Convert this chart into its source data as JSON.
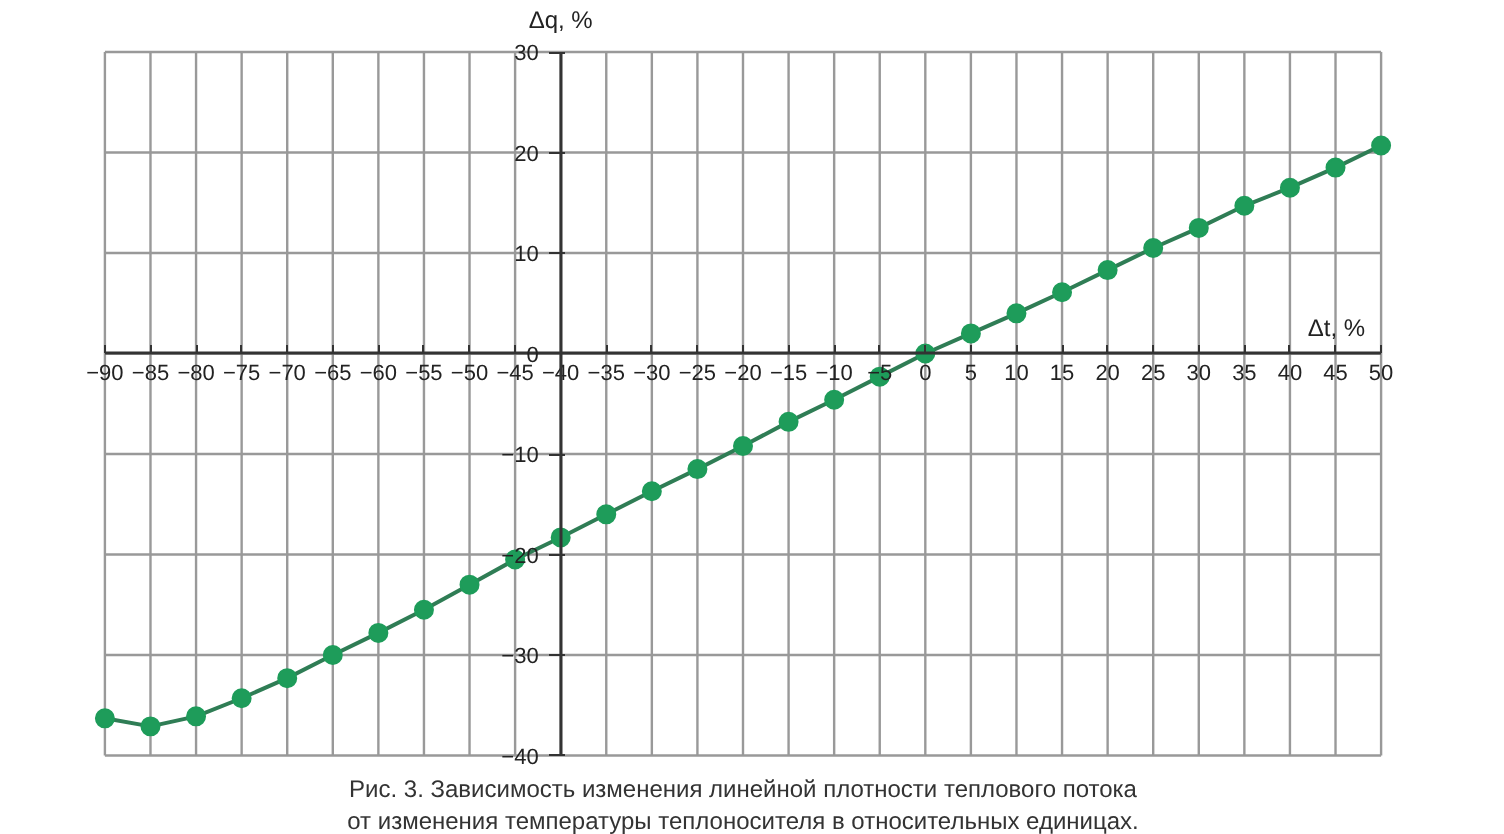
{
  "chart_data": {
    "type": "line",
    "xlabel": "Δt, %",
    "ylabel": "Δq, %",
    "annotations": [
      "Рис. 3. Зависимость изменения линейной плотности теплового потока",
      "от изменения температуры теплоносителя в относительных единицах."
    ],
    "x": [
      -90,
      -85,
      -80,
      -75,
      -70,
      -65,
      -60,
      -55,
      -50,
      -45,
      -40,
      -35,
      -30,
      -25,
      -20,
      -15,
      -10,
      -5,
      0,
      5,
      10,
      15,
      20,
      25,
      30,
      35,
      40,
      45,
      50
    ],
    "series": [
      {
        "color": "#1e9c5a",
        "values": [
          -36.3,
          -37.1,
          -36.1,
          -34.3,
          -32.3,
          -30,
          -27.8,
          -25.5,
          -23,
          -20.5,
          -18.3,
          -16,
          -13.7,
          -11.5,
          -9.2,
          -6.8,
          -4.6,
          -2.3,
          0,
          2,
          4,
          6.1,
          8.3,
          10.5,
          12.5,
          14.7,
          16.5,
          18.5,
          20.7
        ]
      }
    ],
    "xlim": [
      -90,
      50
    ],
    "ylim": [
      -40,
      30
    ],
    "xticks": [
      {
        "value": -90,
        "label": "−90"
      },
      {
        "value": -85,
        "label": "−85"
      },
      {
        "value": -80,
        "label": "−80"
      },
      {
        "value": -75,
        "label": "−75"
      },
      {
        "value": -70,
        "label": "−70"
      },
      {
        "value": -65,
        "label": "−65"
      },
      {
        "value": -60,
        "label": "−60"
      },
      {
        "value": -55,
        "label": "−55"
      },
      {
        "value": -50,
        "label": "−50"
      },
      {
        "value": -45,
        "label": "−45"
      },
      {
        "value": -40,
        "label": "−40"
      },
      {
        "value": -35,
        "label": "−35"
      },
      {
        "value": -30,
        "label": "−30"
      },
      {
        "value": -25,
        "label": "−25"
      },
      {
        "value": -20,
        "label": "−20"
      },
      {
        "value": -15,
        "label": "−15"
      },
      {
        "value": -10,
        "label": "−10"
      },
      {
        "value": -5,
        "label": "−5"
      },
      0,
      5,
      10,
      15,
      20,
      25,
      30,
      35,
      40,
      45,
      50
    ],
    "yticks": [
      {
        "value": -40,
        "label": "−40"
      },
      {
        "value": -30,
        "label": "−30"
      },
      {
        "value": -20,
        "label": "−20"
      },
      {
        "value": -10,
        "label": "−10"
      },
      0,
      10,
      20,
      30
    ],
    "grid": true,
    "marker": "circle",
    "line_style": "solid"
  }
}
